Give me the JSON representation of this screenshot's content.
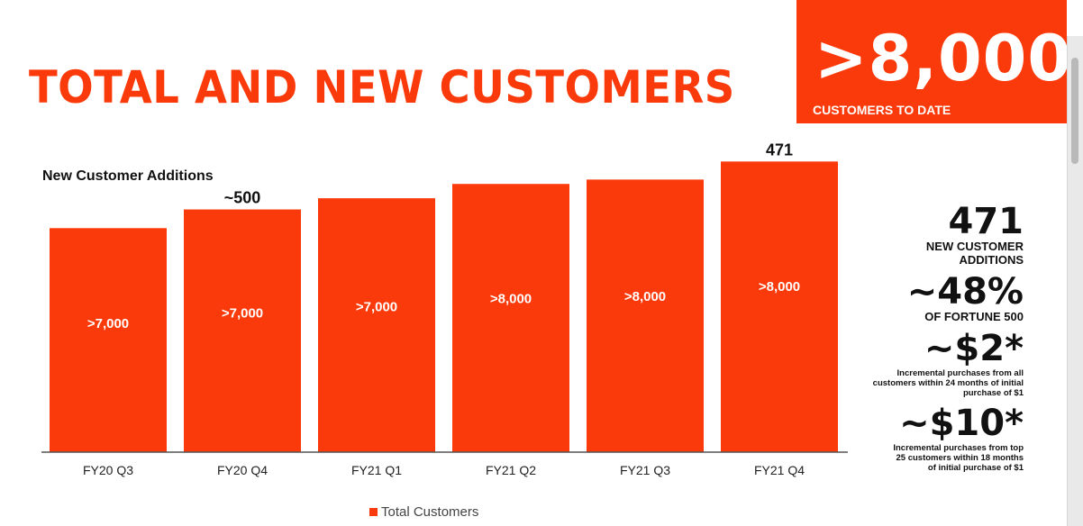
{
  "title": "TOTAL AND NEW CUSTOMERS",
  "hero": {
    "value": ">8,000",
    "caption": "CUSTOMERS TO DATE"
  },
  "chart_data": {
    "type": "bar",
    "subtitle": "New Customer Additions",
    "categories": [
      "FY20 Q3",
      "FY20 Q4",
      "FY21 Q1",
      "FY21 Q2",
      "FY21 Q3",
      "FY21 Q4"
    ],
    "values": [
      7450,
      7750,
      7930,
      8160,
      8230,
      8520
    ],
    "bar_labels": [
      ">7,000",
      ">7,000",
      ">7,000",
      ">8,000",
      ">8,000",
      ">8,000"
    ],
    "top_labels": [
      "",
      "~500",
      "",
      "",
      "",
      "471"
    ],
    "ylim": [
      3850,
      8800
    ],
    "color": "#fa3a0a",
    "legend": {
      "label": "Total Customers",
      "position": "bottom-center"
    }
  },
  "kpis": [
    {
      "value": "471",
      "label": "NEW CUSTOMER ADDITIONS"
    },
    {
      "value": "~48%",
      "label": "OF FORTUNE 500"
    },
    {
      "value": "~$2*",
      "note": "Incremental purchases from all customers within 24 months of initial purchase of $1"
    },
    {
      "value": "~$10*",
      "note": "Incremental purchases from top 25 customers within 18 months of initial purchase of $1"
    }
  ]
}
